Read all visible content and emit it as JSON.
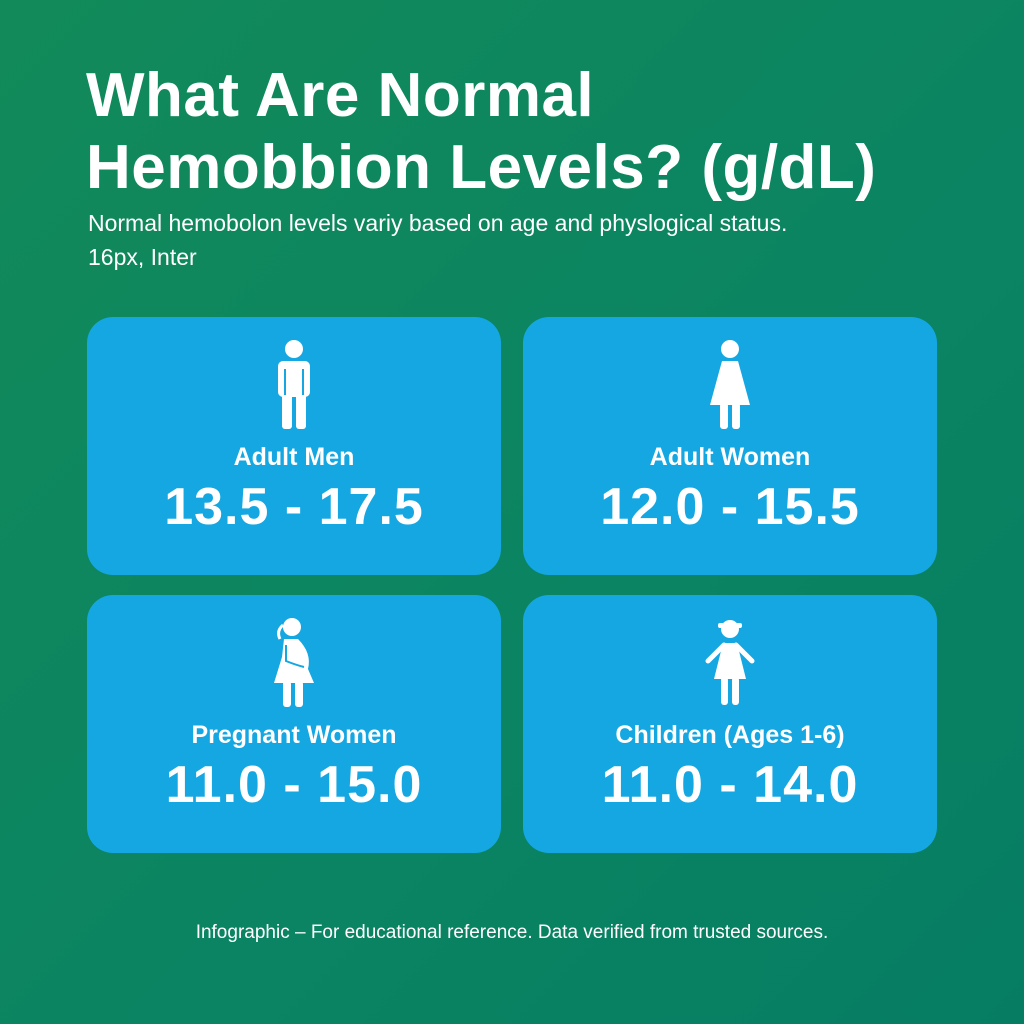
{
  "title_line1": "What Are Normal",
  "title_line2": "Hemobbion Levels? (g/dL)",
  "subtitle_line1": "Normal hemobolon levels variy based on age and physlogical status.",
  "subtitle_line2": "16px, Inter",
  "colors": {
    "background": "#0a8462",
    "card": "#14a7e2",
    "text": "#ffffff"
  },
  "cards": [
    {
      "icon": "man-icon",
      "label": "Adult Men",
      "value": "13.5 - 17.5"
    },
    {
      "icon": "woman-icon",
      "label": "Adult Women",
      "value": "12.0 - 15.5"
    },
    {
      "icon": "pregnant-woman-icon",
      "label": "Pregnant Women",
      "value": "11.0 - 15.0"
    },
    {
      "icon": "child-icon",
      "label": "Children (Ages 1-6)",
      "value": "11.0 - 14.0"
    }
  ],
  "footer": "Infographic – For educational reference. Data verified from trusted sources."
}
